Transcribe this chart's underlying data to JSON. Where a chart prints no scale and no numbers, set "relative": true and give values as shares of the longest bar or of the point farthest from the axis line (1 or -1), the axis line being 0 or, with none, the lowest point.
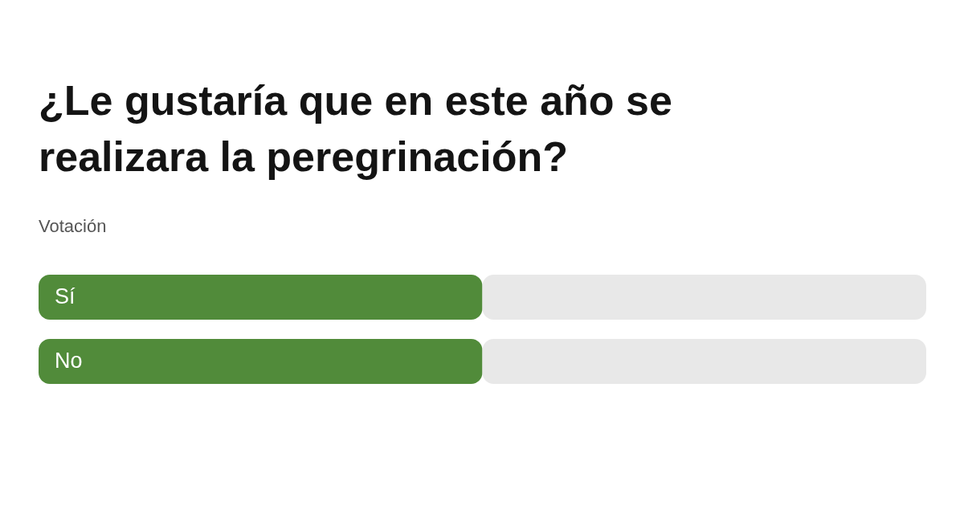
{
  "chart_data": {
    "type": "bar",
    "title": "¿Le gustaría que en este año se realizara la peregrinación?",
    "subtitle": "Votación",
    "categories": [
      "Sí",
      "No"
    ],
    "orientation": "horizontal",
    "stacked": true,
    "relative": true,
    "series": [
      {
        "color": "#518b3a",
        "values": [
          0.5,
          0.5
        ]
      },
      {
        "color": "#e8e8e8",
        "values": [
          0.5,
          0.5
        ]
      }
    ]
  }
}
